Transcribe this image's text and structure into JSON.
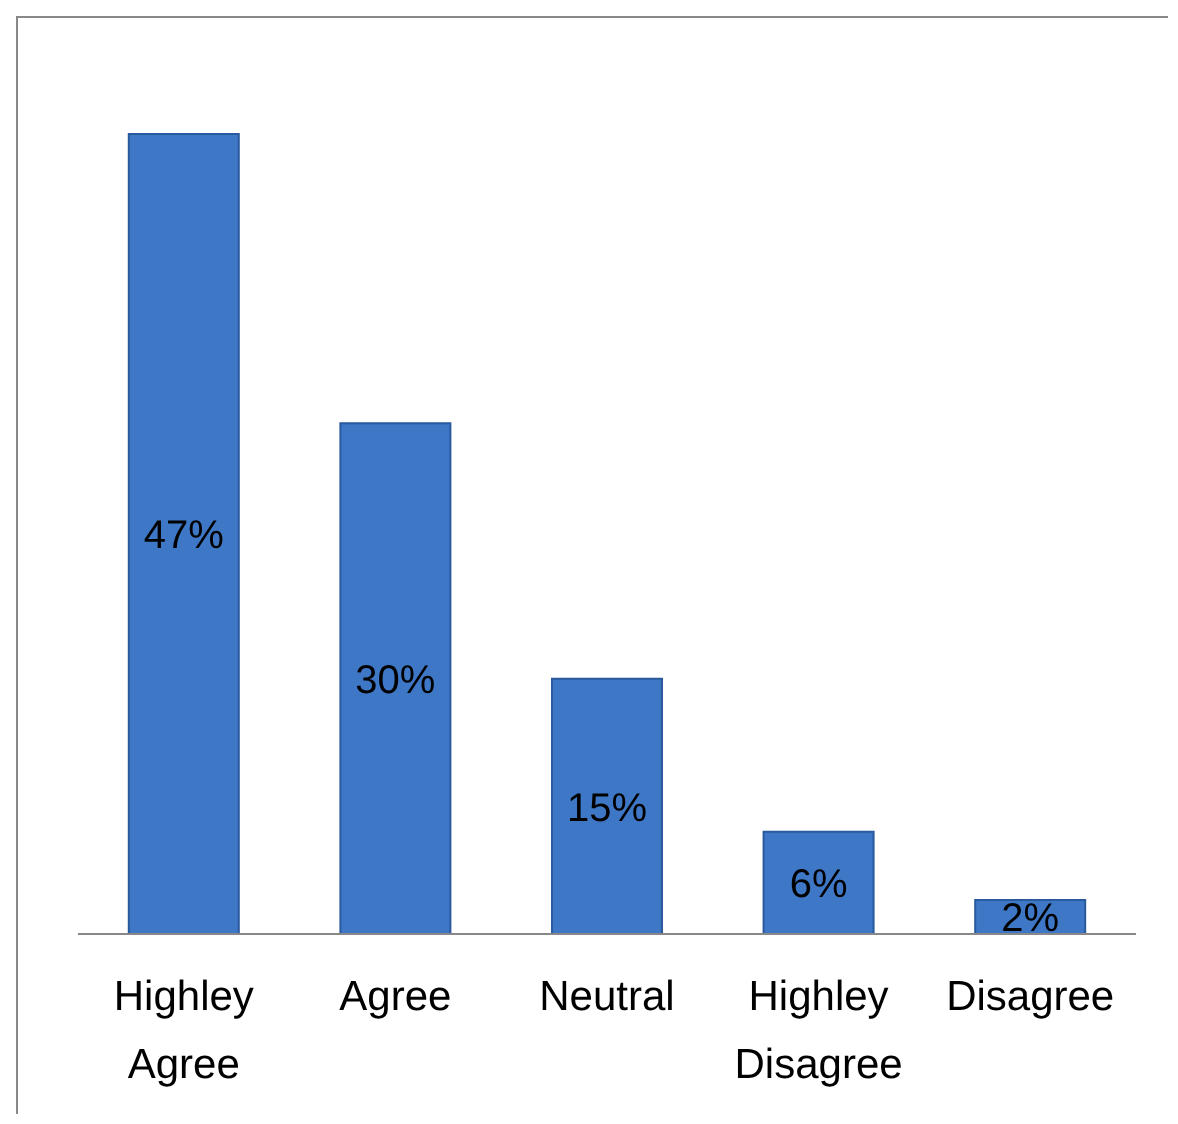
{
  "chart_data": {
    "type": "bar",
    "categories": [
      "Highley Agree",
      "Agree",
      "Neutral",
      "Highley Disagree",
      "Disagree"
    ],
    "values": [
      47,
      30,
      15,
      6,
      2
    ],
    "value_labels": [
      "47%",
      "30%",
      "15%",
      "6%",
      "2%"
    ],
    "color": "#3d77c6"
  }
}
